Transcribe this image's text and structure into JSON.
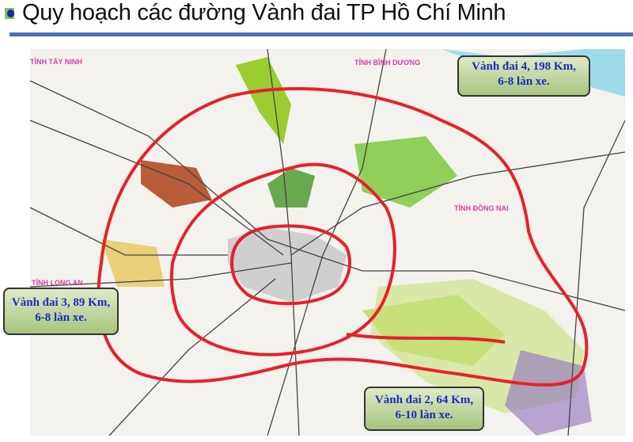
{
  "header": {
    "title": "Quy hoạch các đường Vành đai TP Hồ Chí Minh"
  },
  "map": {
    "province_labels": [
      "TỈNH TÂY NINH",
      "TỈNH BÌNH DƯƠNG",
      "TỈNH ĐỒNG NAI",
      "TỈNH LONG AN"
    ],
    "callouts": [
      {
        "line1": "Vành đai 4, 198 Km,",
        "line2": "6-8 làn xe."
      },
      {
        "line1": "Vành đai 3, 89 Km,",
        "line2": "6-8 làn xe."
      },
      {
        "line1": "Vành đai 2, 64 Km,",
        "line2": "6-10 làn xe."
      }
    ],
    "colors": {
      "ring_road": "#e8202a",
      "title_rule": "#4a72b8",
      "callout_text": "#1a2dbf"
    }
  }
}
